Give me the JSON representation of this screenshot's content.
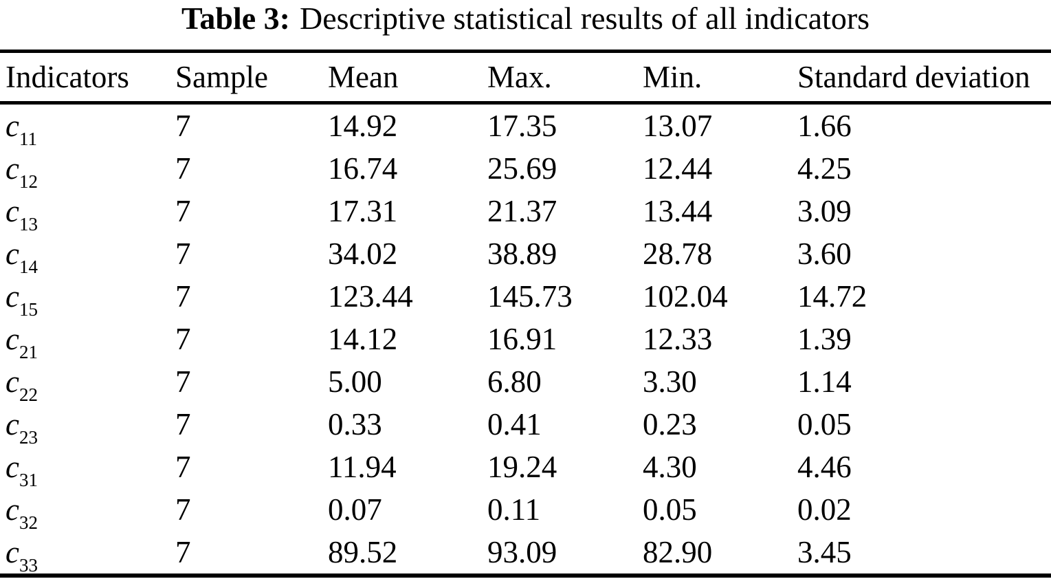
{
  "page": {
    "title_bold": "Table 3:",
    "title_rest": "Descriptive statistical results of all indicators"
  },
  "table": {
    "columns": [
      "Indicators",
      "Sample",
      "Mean",
      "Max.",
      "Min.",
      "Standard deviation"
    ],
    "rows": [
      {
        "indicator": {
          "base": "c",
          "sub": "11"
        },
        "sample": "7",
        "mean": "14.92",
        "max": "17.35",
        "min": "13.07",
        "std_dev": "1.66"
      },
      {
        "indicator": {
          "base": "c",
          "sub": "12"
        },
        "sample": "7",
        "mean": "16.74",
        "max": "25.69",
        "min": "12.44",
        "std_dev": "4.25"
      },
      {
        "indicator": {
          "base": "c",
          "sub": "13"
        },
        "sample": "7",
        "mean": "17.31",
        "max": "21.37",
        "min": "13.44",
        "std_dev": "3.09"
      },
      {
        "indicator": {
          "base": "c",
          "sub": "14"
        },
        "sample": "7",
        "mean": "34.02",
        "max": "38.89",
        "min": "28.78",
        "std_dev": "3.60"
      },
      {
        "indicator": {
          "base": "c",
          "sub": "15"
        },
        "sample": "7",
        "mean": "123.44",
        "max": "145.73",
        "min": "102.04",
        "std_dev": "14.72"
      },
      {
        "indicator": {
          "base": "c",
          "sub": "21"
        },
        "sample": "7",
        "mean": "14.12",
        "max": "16.91",
        "min": "12.33",
        "std_dev": "1.39"
      },
      {
        "indicator": {
          "base": "c",
          "sub": "22"
        },
        "sample": "7",
        "mean": "5.00",
        "max": "6.80",
        "min": "3.30",
        "std_dev": "1.14"
      },
      {
        "indicator": {
          "base": "c",
          "sub": "23"
        },
        "sample": "7",
        "mean": "0.33",
        "max": "0.41",
        "min": "0.23",
        "std_dev": "0.05"
      },
      {
        "indicator": {
          "base": "c",
          "sub": "31"
        },
        "sample": "7",
        "mean": "11.94",
        "max": "19.24",
        "min": "4.30",
        "std_dev": "4.46"
      },
      {
        "indicator": {
          "base": "c",
          "sub": "32"
        },
        "sample": "7",
        "mean": "0.07",
        "max": "0.11",
        "min": "0.05",
        "std_dev": "0.02"
      },
      {
        "indicator": {
          "base": "c",
          "sub": "33"
        },
        "sample": "7",
        "mean": "89.52",
        "max": "93.09",
        "min": "82.90",
        "std_dev": "3.45"
      }
    ]
  },
  "colors": {
    "text": "#000000",
    "background": "#ffffff",
    "rule": "#000000"
  }
}
